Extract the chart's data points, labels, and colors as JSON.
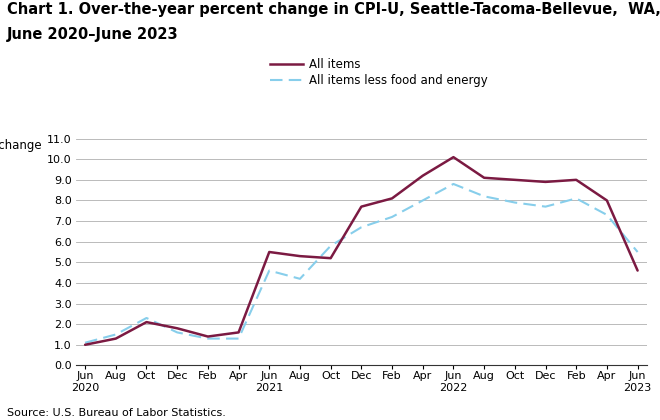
{
  "title_line1": "Chart 1. Over-the-year percent change in CPI-U, Seattle-Tacoma-Bellevue,  WA,",
  "title_line2": "June 2020–June 2023",
  "ylabel": "Percent change",
  "source": "Source: U.S. Bureau of Labor Statistics.",
  "legend_all": "All items",
  "legend_core": "All items less food and energy",
  "ylim": [
    0.0,
    11.0
  ],
  "yticks": [
    0.0,
    1.0,
    2.0,
    3.0,
    4.0,
    5.0,
    6.0,
    7.0,
    8.0,
    9.0,
    10.0,
    11.0
  ],
  "x_labels": [
    "Jun\n2020",
    "Aug",
    "Oct",
    "Dec",
    "Feb",
    "Apr",
    "Jun\n2021",
    "Aug",
    "Oct",
    "Dec",
    "Feb",
    "Apr",
    "Jun\n2022",
    "Aug",
    "Oct",
    "Dec",
    "Feb",
    "Apr",
    "Jun\n2023"
  ],
  "all_items": [
    1.0,
    1.3,
    2.1,
    1.8,
    1.4,
    1.6,
    5.5,
    5.3,
    5.2,
    7.7,
    8.1,
    9.2,
    10.1,
    9.1,
    9.0,
    8.9,
    9.0,
    8.0,
    4.6
  ],
  "core_items": [
    1.1,
    1.5,
    2.3,
    1.6,
    1.3,
    1.3,
    4.6,
    4.2,
    5.8,
    6.7,
    7.2,
    8.0,
    8.8,
    8.2,
    7.9,
    7.7,
    8.1,
    7.3,
    5.5
  ],
  "all_color": "#7B1A42",
  "core_color": "#87CEEB",
  "background": "#ffffff",
  "title_fontsize": 10.5,
  "axis_fontsize": 8.5,
  "tick_fontsize": 8.0,
  "source_fontsize": 8.0,
  "legend_fontsize": 8.5
}
